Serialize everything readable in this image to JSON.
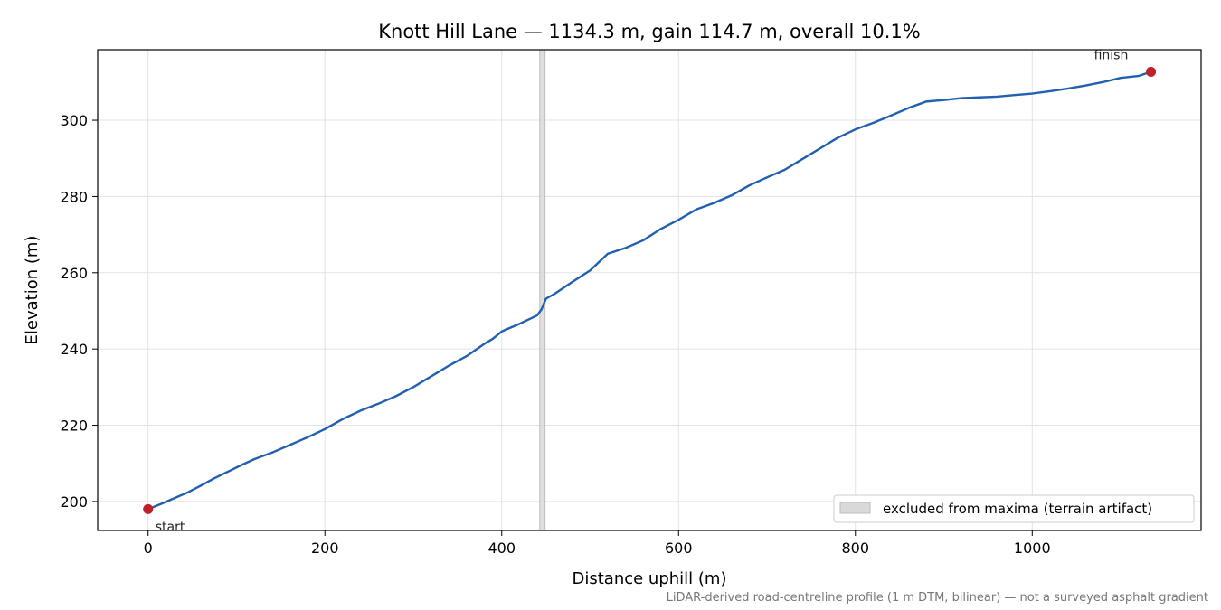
{
  "chart_data": {
    "type": "line",
    "title": "Knott Hill Lane — 1134.3 m, gain 114.7 m, overall 10.1%",
    "xlabel": "Distance uphill (m)",
    "ylabel": "Elevation (m)",
    "xlim": [
      -57,
      1191
    ],
    "ylim": [
      192.4,
      318.5
    ],
    "xticks": [
      0,
      200,
      400,
      600,
      800,
      1000
    ],
    "yticks": [
      200,
      220,
      240,
      260,
      280,
      300
    ],
    "grid": true,
    "legend_position": "lower-right",
    "line_color": "#2160b0",
    "marker_color": "#c0202a",
    "series": [
      {
        "x": [
          0,
          15,
          30,
          45,
          60,
          75,
          90,
          105,
          120,
          140,
          160,
          180,
          200,
          220,
          240,
          260,
          280,
          300,
          320,
          340,
          360,
          380,
          390,
          400,
          420,
          440,
          445,
          450,
          460,
          480,
          500,
          510,
          520,
          540,
          560,
          580,
          600,
          620,
          640,
          660,
          680,
          700,
          720,
          740,
          760,
          780,
          800,
          820,
          840,
          860,
          880,
          900,
          920,
          940,
          960,
          980,
          1000,
          1020,
          1040,
          1060,
          1080,
          1100,
          1120,
          1134.3
        ],
        "y": [
          198.0,
          199.4,
          200.9,
          202.4,
          204.2,
          206.1,
          207.8,
          209.5,
          211.1,
          212.8,
          214.8,
          216.8,
          219.0,
          221.6,
          223.8,
          225.6,
          227.6,
          230.0,
          232.8,
          235.6,
          238.1,
          241.3,
          242.7,
          244.6,
          246.6,
          248.8,
          250.4,
          253.2,
          254.5,
          257.6,
          260.6,
          262.8,
          265.0,
          266.5,
          268.5,
          271.5,
          273.9,
          276.6,
          278.3,
          280.3,
          282.9,
          285.0,
          287.0,
          289.8,
          292.6,
          295.4,
          297.6,
          299.3,
          301.2,
          303.2,
          304.9,
          305.3,
          305.8,
          306.0,
          306.2,
          306.6,
          307.0,
          307.6,
          308.3,
          309.1,
          310.0,
          311.1,
          311.6,
          312.7
        ]
      }
    ],
    "start_point": {
      "x": 0,
      "y": 198.0,
      "label": "start"
    },
    "finish_point": {
      "x": 1134.3,
      "y": 312.7,
      "label": "finish"
    },
    "excluded_band": {
      "x0": 443,
      "x1": 449,
      "label": "excluded from maxima (terrain artifact)"
    },
    "footnote": "LiDAR-derived road-centreline profile (1 m DTM, bilinear) — not a surveyed asphalt gradient"
  }
}
